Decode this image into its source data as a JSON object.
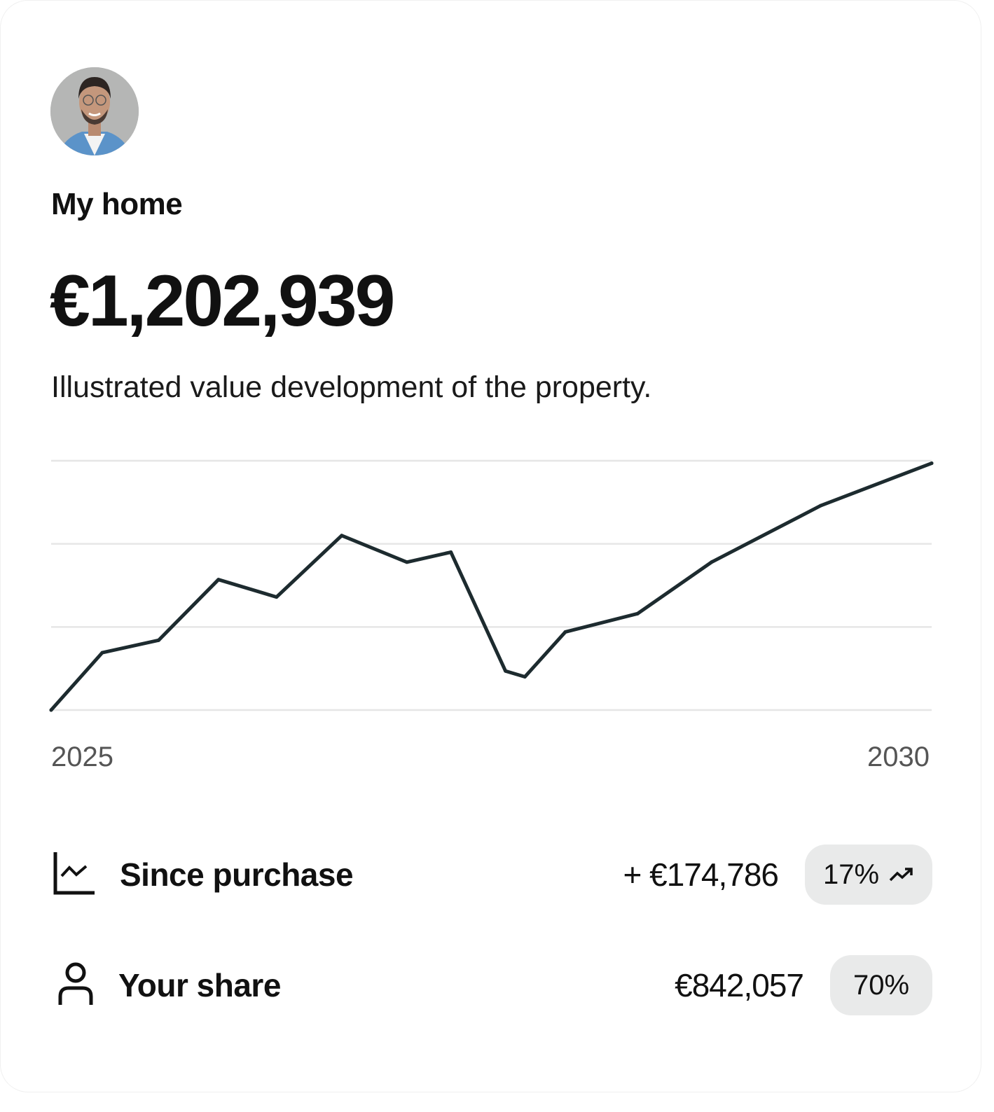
{
  "card": {
    "title": "My home",
    "amount": "€1,202,939",
    "subtitle": "Illustrated value development of the property.",
    "avatar_icon": "user-photo"
  },
  "chart_data": {
    "type": "line",
    "title": "",
    "xlabel": "",
    "ylabel": "",
    "x_tick_labels": [
      "2025",
      "2030"
    ],
    "xlim": [
      2025,
      2030
    ],
    "ylim": [
      0,
      3
    ],
    "grid": true,
    "y_axis_labels_shown": false,
    "line_color": "#1d2b2f",
    "grid_color": "#e6e6e6",
    "x": [
      2025.0,
      2025.29,
      2025.61,
      2025.95,
      2026.28,
      2026.65,
      2027.02,
      2027.27,
      2027.58,
      2027.69,
      2027.92,
      2028.33,
      2028.75,
      2029.37,
      2030.0
    ],
    "values": [
      0,
      0.69,
      0.84,
      1.57,
      1.36,
      2.1,
      1.78,
      1.9,
      0.47,
      0.4,
      0.94,
      1.16,
      1.78,
      2.46,
      2.97
    ]
  },
  "stats": {
    "since_purchase": {
      "label": "Since purchase",
      "value": "+ €174,786",
      "percent": "17%",
      "icon": "line-chart-icon",
      "trend_icon": "trend-up-icon"
    },
    "your_share": {
      "label": "Your share",
      "value": "€842,057",
      "percent": "70%",
      "icon": "user-icon"
    }
  }
}
